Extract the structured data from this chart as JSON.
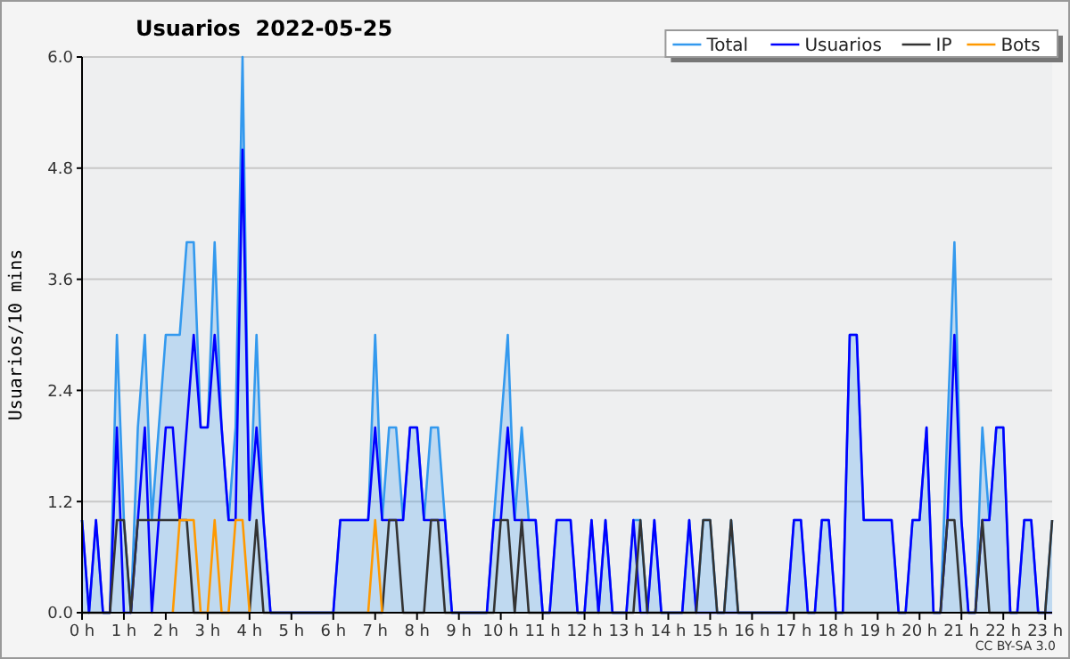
{
  "chart_data": {
    "type": "line",
    "title": "Usuarios  2022-05-25",
    "ylabel": "Usuarios/10 mins",
    "annotations": [
      "CC BY-SA 3.0"
    ],
    "x": [
      0,
      0.167,
      0.333,
      0.5,
      0.667,
      0.833,
      1,
      1.167,
      1.333,
      1.5,
      1.667,
      1.833,
      2,
      2.167,
      2.333,
      2.5,
      2.667,
      2.833,
      3,
      3.167,
      3.333,
      3.5,
      3.667,
      3.833,
      4,
      4.167,
      4.333,
      4.5,
      4.667,
      4.833,
      5,
      5.167,
      5.333,
      5.5,
      5.667,
      5.833,
      6,
      6.167,
      6.333,
      6.5,
      6.667,
      6.833,
      7,
      7.167,
      7.333,
      7.5,
      7.667,
      7.833,
      8,
      8.167,
      8.333,
      8.5,
      8.667,
      8.833,
      9,
      9.167,
      9.333,
      9.5,
      9.667,
      9.833,
      10,
      10.167,
      10.333,
      10.5,
      10.667,
      10.833,
      11,
      11.167,
      11.333,
      11.5,
      11.667,
      11.833,
      12,
      12.167,
      12.333,
      12.5,
      12.667,
      12.833,
      13,
      13.167,
      13.333,
      13.5,
      13.667,
      13.833,
      14,
      14.167,
      14.333,
      14.5,
      14.667,
      14.833,
      15,
      15.167,
      15.333,
      15.5,
      15.667,
      15.833,
      16,
      16.167,
      16.333,
      16.5,
      16.667,
      16.833,
      17,
      17.167,
      17.333,
      17.5,
      17.667,
      17.833,
      18,
      18.167,
      18.333,
      18.5,
      18.667,
      18.833,
      19,
      19.167,
      19.333,
      19.5,
      19.667,
      19.833,
      20,
      20.167,
      20.333,
      20.5,
      20.667,
      20.833,
      21,
      21.167,
      21.333,
      21.5,
      21.667,
      21.833,
      22,
      22.167,
      22.333,
      22.5,
      22.667,
      22.833,
      23,
      23.167
    ],
    "xlim": [
      0,
      23.167
    ],
    "xticks": [
      {
        "value": 0,
        "label": "0 h"
      },
      {
        "value": 1,
        "label": "1 h"
      },
      {
        "value": 2,
        "label": "2 h"
      },
      {
        "value": 3,
        "label": "3 h"
      },
      {
        "value": 4,
        "label": "4 h"
      },
      {
        "value": 5,
        "label": "5 h"
      },
      {
        "value": 6,
        "label": "6 h"
      },
      {
        "value": 7,
        "label": "7 h"
      },
      {
        "value": 8,
        "label": "8 h"
      },
      {
        "value": 9,
        "label": "9 h"
      },
      {
        "value": 10,
        "label": "10 h"
      },
      {
        "value": 11,
        "label": "11 h"
      },
      {
        "value": 12,
        "label": "12 h"
      },
      {
        "value": 13,
        "label": "13 h"
      },
      {
        "value": 14,
        "label": "14 h"
      },
      {
        "value": 15,
        "label": "15 h"
      },
      {
        "value": 16,
        "label": "16 h"
      },
      {
        "value": 17,
        "label": "17 h"
      },
      {
        "value": 18,
        "label": "18 h"
      },
      {
        "value": 19,
        "label": "19 h"
      },
      {
        "value": 20,
        "label": "20 h"
      },
      {
        "value": 21,
        "label": "21 h"
      },
      {
        "value": 22,
        "label": "22 h"
      },
      {
        "value": 23,
        "label": "23 h"
      }
    ],
    "ylim": [
      0,
      6
    ],
    "yticks": [
      {
        "value": 0,
        "label": "0.0"
      },
      1.2,
      2.4,
      3.6,
      4.8,
      {
        "value": 6,
        "label": "6.0"
      }
    ],
    "grid": "y",
    "legend": "top right",
    "series": [
      {
        "name": "Total",
        "type": "area",
        "color": "#3399ee",
        "values": [
          1,
          0,
          1,
          0,
          0,
          3,
          1,
          0,
          2,
          3,
          1,
          2,
          3,
          3,
          3,
          4,
          4,
          2,
          2,
          4,
          2,
          1,
          2,
          6,
          1,
          3,
          1,
          0,
          0,
          0,
          0,
          0,
          0,
          0,
          0,
          0,
          0,
          1,
          1,
          1,
          1,
          1,
          3,
          1,
          2,
          2,
          1,
          2,
          2,
          1,
          2,
          2,
          1,
          0,
          0,
          0,
          0,
          0,
          0,
          1,
          2,
          3,
          1,
          2,
          1,
          1,
          0,
          0,
          1,
          1,
          1,
          0,
          0,
          1,
          0,
          1,
          0,
          0,
          0,
          1,
          1,
          0,
          1,
          0,
          0,
          0,
          0,
          1,
          0,
          1,
          1,
          0,
          0,
          1,
          0,
          0,
          0,
          0,
          0,
          0,
          0,
          0,
          1,
          1,
          0,
          0,
          1,
          1,
          0,
          0,
          3,
          3,
          1,
          1,
          1,
          1,
          1,
          0,
          0,
          1,
          1,
          2,
          0,
          0,
          2,
          4,
          1,
          0,
          0,
          2,
          1,
          2,
          2,
          0,
          0,
          1,
          1,
          0,
          0,
          1
        ]
      },
      {
        "name": "Usuarios",
        "color": "#0000ff",
        "values": [
          1,
          0,
          1,
          0,
          0,
          2,
          0,
          0,
          1,
          2,
          0,
          1,
          2,
          2,
          1,
          2,
          3,
          2,
          2,
          3,
          2,
          1,
          1,
          5,
          1,
          2,
          1,
          0,
          0,
          0,
          0,
          0,
          0,
          0,
          0,
          0,
          0,
          1,
          1,
          1,
          1,
          1,
          2,
          1,
          1,
          1,
          1,
          2,
          2,
          1,
          1,
          1,
          1,
          0,
          0,
          0,
          0,
          0,
          0,
          1,
          1,
          2,
          1,
          1,
          1,
          1,
          0,
          0,
          1,
          1,
          1,
          0,
          0,
          1,
          0,
          1,
          0,
          0,
          0,
          1,
          0,
          0,
          1,
          0,
          0,
          0,
          0,
          1,
          0,
          0,
          0,
          0,
          0,
          0,
          0,
          0,
          0,
          0,
          0,
          0,
          0,
          0,
          1,
          1,
          0,
          0,
          1,
          1,
          0,
          0,
          3,
          3,
          1,
          1,
          1,
          1,
          1,
          0,
          0,
          1,
          1,
          2,
          0,
          0,
          1,
          3,
          1,
          0,
          0,
          1,
          1,
          2,
          2,
          0,
          0,
          1,
          1,
          0,
          0,
          0
        ]
      },
      {
        "name": "IP",
        "color": "#333333",
        "values": [
          0,
          0,
          0,
          0,
          0,
          1,
          1,
          0,
          1,
          1,
          1,
          1,
          1,
          1,
          1,
          1,
          0,
          0,
          0,
          0,
          0,
          0,
          0,
          0,
          0,
          1,
          0,
          0,
          0,
          0,
          0,
          0,
          0,
          0,
          0,
          0,
          0,
          0,
          0,
          0,
          0,
          0,
          0,
          0,
          1,
          1,
          0,
          0,
          0,
          0,
          1,
          1,
          0,
          0,
          0,
          0,
          0,
          0,
          0,
          0,
          1,
          1,
          0,
          1,
          0,
          0,
          0,
          0,
          0,
          0,
          0,
          0,
          0,
          0,
          0,
          0,
          0,
          0,
          0,
          0,
          1,
          0,
          0,
          0,
          0,
          0,
          0,
          0,
          0,
          1,
          1,
          0,
          0,
          1,
          0,
          0,
          0,
          0,
          0,
          0,
          0,
          0,
          0,
          0,
          0,
          0,
          0,
          0,
          0,
          0,
          0,
          0,
          0,
          0,
          0,
          0,
          0,
          0,
          0,
          0,
          0,
          0,
          0,
          0,
          1,
          1,
          0,
          0,
          0,
          1,
          0,
          0,
          0,
          0,
          0,
          0,
          0,
          0,
          0,
          1
        ]
      },
      {
        "name": "Bots",
        "color": "#ff9900",
        "values": [
          null,
          null,
          null,
          null,
          null,
          null,
          null,
          null,
          null,
          null,
          null,
          null,
          null,
          0,
          1,
          1,
          1,
          0,
          0,
          1,
          0,
          0,
          1,
          1,
          0,
          null,
          null,
          null,
          null,
          null,
          null,
          null,
          null,
          null,
          null,
          null,
          null,
          null,
          null,
          null,
          null,
          0,
          1,
          0,
          null,
          null,
          null,
          null,
          null,
          null,
          null,
          null,
          null,
          null,
          null,
          null,
          null,
          null,
          null,
          null,
          null,
          null,
          null,
          null,
          null,
          null,
          null,
          null,
          null,
          null,
          null,
          null,
          null,
          null,
          null,
          null,
          null,
          null,
          null,
          null,
          null,
          null,
          null,
          null,
          null,
          null,
          null,
          null,
          null,
          null,
          null,
          null,
          null,
          null,
          null,
          null,
          null,
          null,
          null,
          null,
          null,
          null,
          null,
          null,
          null,
          null,
          null,
          null,
          null,
          null,
          null,
          null,
          null,
          null,
          null,
          null,
          null,
          null,
          null,
          null,
          null,
          null,
          null,
          null,
          null,
          null,
          null,
          null,
          null,
          null,
          null,
          null,
          null,
          null,
          null,
          null,
          null,
          null,
          null,
          null
        ]
      }
    ]
  }
}
